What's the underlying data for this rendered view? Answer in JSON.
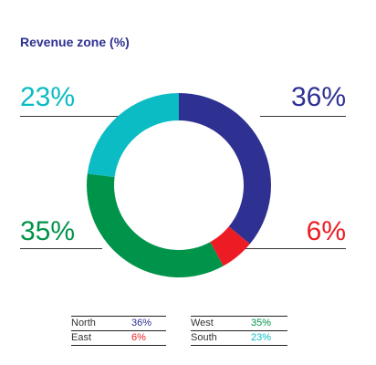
{
  "chart_data": {
    "type": "donut",
    "title": "Revenue zone (%)",
    "series": [
      {
        "name": "North",
        "value": 36,
        "label": "36%",
        "color": "#2e3192"
      },
      {
        "name": "East",
        "value": 6,
        "label": "6%",
        "color": "#ed1c24"
      },
      {
        "name": "West",
        "value": 35,
        "label": "35%",
        "color": "#00934a"
      },
      {
        "name": "South",
        "value": 23,
        "label": "23%",
        "color": "#0bbcc4"
      }
    ],
    "start_angle_deg": 0,
    "direction": "clockwise",
    "legend_position": "bottom"
  },
  "legend": {
    "rows": [
      [
        {
          "name": "North",
          "value": "36%",
          "color": "#2e3192"
        },
        {
          "name": "West",
          "value": "35%",
          "color": "#00934a"
        }
      ],
      [
        {
          "name": "East",
          "value": "6%",
          "color": "#ed1c24"
        },
        {
          "name": "South",
          "value": "23%",
          "color": "#0bbcc4"
        }
      ]
    ]
  }
}
